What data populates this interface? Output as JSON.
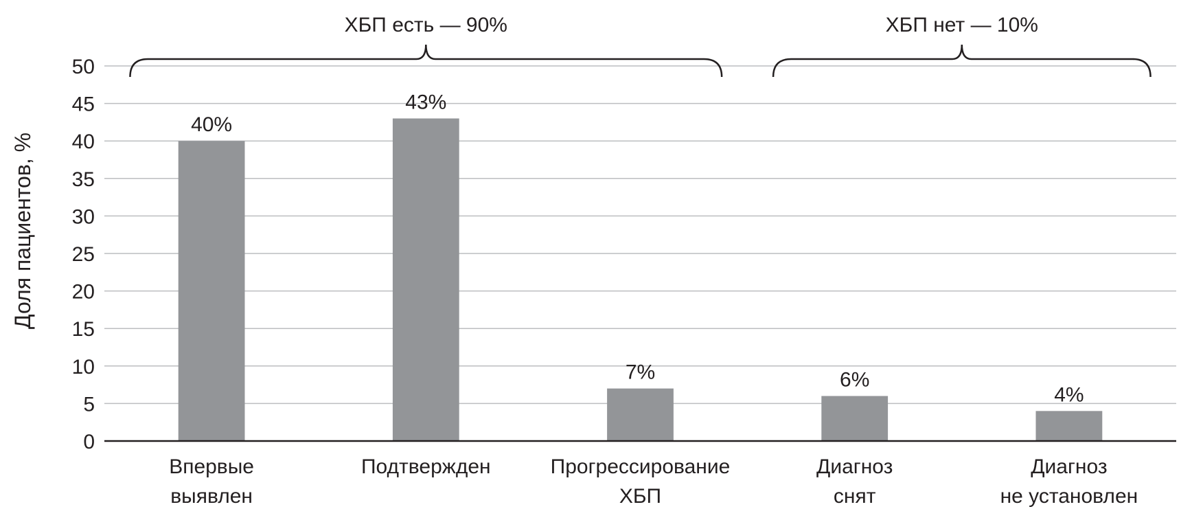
{
  "chart_data": {
    "type": "bar",
    "categories": [
      [
        "Впервые",
        "выявлен"
      ],
      [
        "Подтвержден"
      ],
      [
        "Прогрессирование",
        "ХБП"
      ],
      [
        "Диагноз",
        "снят"
      ],
      [
        "Диагноз",
        "не установлен"
      ]
    ],
    "values": [
      40,
      43,
      7,
      6,
      4
    ],
    "data_labels": [
      "40%",
      "43%",
      "7%",
      "6%",
      "4%"
    ],
    "ylabel": "Доля пациентов, %",
    "ylim": [
      0,
      50
    ],
    "yticks": [
      0,
      5,
      10,
      15,
      20,
      25,
      30,
      35,
      40,
      45,
      50
    ],
    "grid": true,
    "groups": [
      {
        "label": "ХБП есть — 90%",
        "categories": [
          0,
          1,
          2
        ]
      },
      {
        "label": "ХБП нет — 10%",
        "categories": [
          3,
          4
        ]
      }
    ],
    "colors": {
      "bar": "#939598",
      "grid": "#bcbec0",
      "axis": "#231f20",
      "text": "#231f20"
    }
  }
}
